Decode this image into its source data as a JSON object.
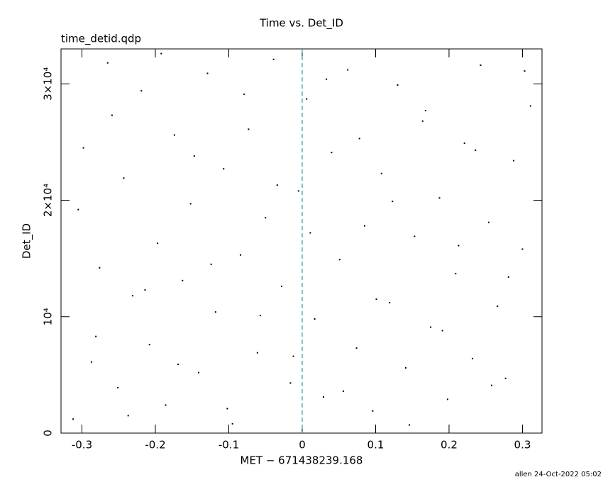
{
  "chart_data": {
    "type": "scatter",
    "title": "Time vs. Det_ID",
    "subtitle": "time_detid.qdp",
    "x_label": "MET − 671438239.168",
    "y_label": "Det_ID",
    "footer": "allen 24-Oct-2022 05:02",
    "xlim": [
      -0.3285,
      0.3266
    ],
    "ylim": [
      0,
      33000
    ],
    "xticks": [
      -0.3,
      -0.2,
      -0.1,
      0,
      0.1,
      0.2,
      0.3
    ],
    "yticks": [
      0,
      {
        "value": 10000,
        "label": "10⁴"
      },
      {
        "value": 20000,
        "label": "2×10⁴"
      },
      {
        "value": 30000,
        "label": "3×10⁴"
      }
    ],
    "vline": {
      "x": 0,
      "color": "#2a9d9d"
    },
    "series": [
      {
        "color": "#000000",
        "x": [
          -0.312,
          -0.298,
          -0.287,
          -0.276,
          -0.265,
          -0.251,
          -0.243,
          -0.231,
          -0.219,
          -0.208,
          -0.197,
          -0.186,
          -0.174,
          -0.163,
          -0.152,
          -0.141,
          -0.129,
          -0.118,
          -0.107,
          -0.095,
          -0.084,
          -0.073,
          -0.061,
          -0.05,
          -0.039,
          -0.028,
          -0.016,
          -0.005,
          0.006,
          0.017,
          0.029,
          0.04,
          0.051,
          0.062,
          0.074,
          0.085,
          0.096,
          0.108,
          0.119,
          0.13,
          0.141,
          0.153,
          0.164,
          0.175,
          0.187,
          0.198,
          0.209,
          0.221,
          0.232,
          0.243,
          0.254,
          0.266,
          0.277,
          0.288,
          0.3,
          0.311,
          -0.305,
          -0.281,
          -0.259,
          -0.237,
          -0.214,
          -0.192,
          -0.169,
          -0.147,
          -0.124,
          -0.102,
          -0.079,
          -0.057,
          -0.034,
          -0.012,
          0.011,
          0.033,
          0.056,
          0.078,
          0.101,
          0.123,
          0.146,
          0.168,
          0.191,
          0.213,
          0.236,
          0.258,
          0.281,
          0.303
        ],
        "values": [
          1200,
          24500,
          6100,
          14200,
          31800,
          3900,
          21900,
          11800,
          29400,
          7600,
          16300,
          2400,
          25600,
          13100,
          19700,
          5200,
          30900,
          10400,
          22700,
          800,
          15300,
          26100,
          6900,
          18500,
          32100,
          12600,
          4300,
          20800,
          28700,
          9800,
          3100,
          24100,
          14900,
          31200,
          7300,
          17800,
          1900,
          22300,
          11200,
          29900,
          5600,
          16900,
          26800,
          9100,
          20200,
          2900,
          13700,
          24900,
          6400,
          31600,
          18100,
          10900,
          4700,
          23400,
          15800,
          28100,
          19200,
          8300,
          27300,
          1500,
          12300,
          32600,
          5900,
          23800,
          14500,
          2100,
          29100,
          10100,
          21300,
          6600,
          17200,
          30400,
          3600,
          25300,
          11500,
          19900,
          700,
          27700,
          8800,
          16100,
          24300,
          4100,
          13400,
          31100
        ]
      }
    ]
  }
}
